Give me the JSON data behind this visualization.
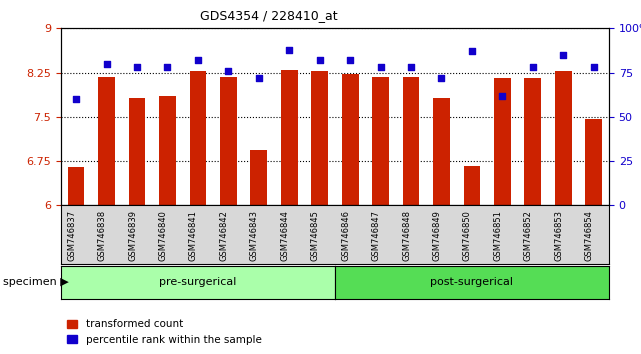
{
  "title": "GDS4354 / 228410_at",
  "samples": [
    "GSM746837",
    "GSM746838",
    "GSM746839",
    "GSM746840",
    "GSM746841",
    "GSM746842",
    "GSM746843",
    "GSM746844",
    "GSM746845",
    "GSM746846",
    "GSM746847",
    "GSM746848",
    "GSM746849",
    "GSM746850",
    "GSM746851",
    "GSM746852",
    "GSM746853",
    "GSM746854"
  ],
  "red_values": [
    6.65,
    8.18,
    7.82,
    7.85,
    8.27,
    8.17,
    6.93,
    8.3,
    8.27,
    8.22,
    8.17,
    8.17,
    7.82,
    6.67,
    8.16,
    8.16,
    8.28,
    7.47
  ],
  "blue_values": [
    60,
    80,
    78,
    78,
    82,
    76,
    72,
    88,
    82,
    82,
    78,
    78,
    72,
    87,
    62,
    78,
    85,
    78
  ],
  "group1_label": "pre-surgerical",
  "group2_label": "post-surgerical",
  "group1_count": 9,
  "group2_count": 9,
  "ylim_left": [
    6,
    9
  ],
  "ylim_right": [
    0,
    100
  ],
  "yticks_left": [
    6,
    6.75,
    7.5,
    8.25,
    9
  ],
  "ytick_labels_left": [
    "6",
    "6.75",
    "7.5",
    "8.25",
    "9"
  ],
  "yticks_right": [
    0,
    25,
    50,
    75,
    100
  ],
  "ytick_labels_right": [
    "0",
    "25",
    "50",
    "75",
    "100%"
  ],
  "bar_color": "#CC2200",
  "dot_color": "#1100CC",
  "group1_color": "#AAFFAA",
  "group2_color": "#55DD55",
  "legend_red": "transformed count",
  "legend_blue": "percentile rank within the sample"
}
